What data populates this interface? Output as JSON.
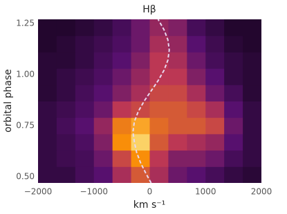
{
  "chart_data": {
    "type": "heatmap",
    "title": "Hβ",
    "xlabel": "km s⁻¹",
    "ylabel": "orbital phase",
    "colormap": "inferno",
    "x_edges": [
      -2000,
      -1667,
      -1333,
      -1000,
      -667,
      -333,
      0,
      333,
      667,
      1000,
      1333,
      1667,
      2000
    ],
    "y_edges": [
      0.47,
      0.55,
      0.63,
      0.71,
      0.79,
      0.87,
      0.95,
      1.03,
      1.11,
      1.19,
      1.27
    ],
    "z": [
      [
        0.15,
        0.15,
        0.2,
        0.25,
        0.45,
        0.6,
        0.45,
        0.3,
        0.25,
        0.2,
        0.15,
        0.12
      ],
      [
        0.15,
        0.18,
        0.2,
        0.3,
        0.55,
        0.75,
        0.5,
        0.35,
        0.35,
        0.3,
        0.2,
        0.15
      ],
      [
        0.15,
        0.18,
        0.22,
        0.35,
        0.75,
        0.9,
        0.6,
        0.5,
        0.45,
        0.4,
        0.25,
        0.15
      ],
      [
        0.15,
        0.2,
        0.25,
        0.4,
        0.7,
        0.8,
        0.65,
        0.6,
        0.6,
        0.55,
        0.3,
        0.15
      ],
      [
        0.15,
        0.18,
        0.22,
        0.3,
        0.5,
        0.55,
        0.6,
        0.6,
        0.55,
        0.45,
        0.25,
        0.15
      ],
      [
        0.12,
        0.15,
        0.2,
        0.25,
        0.35,
        0.45,
        0.55,
        0.55,
        0.45,
        0.3,
        0.2,
        0.12
      ],
      [
        0.12,
        0.15,
        0.18,
        0.22,
        0.3,
        0.4,
        0.5,
        0.5,
        0.35,
        0.25,
        0.15,
        0.12
      ],
      [
        0.12,
        0.12,
        0.15,
        0.2,
        0.25,
        0.35,
        0.5,
        0.45,
        0.3,
        0.2,
        0.15,
        0.12
      ],
      [
        0.1,
        0.12,
        0.15,
        0.18,
        0.22,
        0.3,
        0.45,
        0.4,
        0.25,
        0.18,
        0.12,
        0.1
      ],
      [
        0.1,
        0.1,
        0.12,
        0.15,
        0.2,
        0.3,
        0.4,
        0.35,
        0.2,
        0.15,
        0.1,
        0.1
      ]
    ],
    "curve": {
      "color": "#e8d8f0",
      "x": [
        25,
        -75,
        -166,
        -235,
        -275,
        -300,
        -275,
        -204,
        -100,
        25,
        150,
        254,
        325,
        350,
        325,
        254,
        150
      ],
      "y": [
        0.47,
        0.52,
        0.57,
        0.62,
        0.67,
        0.72,
        0.77,
        0.82,
        0.87,
        0.92,
        0.97,
        1.02,
        1.07,
        1.12,
        1.17,
        1.22,
        1.27
      ]
    },
    "xlim": [
      -2000,
      2000
    ],
    "ylim": [
      0.47,
      1.27
    ],
    "xticks": [
      {
        "value": -2000,
        "label": "−2000"
      },
      {
        "value": -1000,
        "label": "−1000"
      },
      0,
      1000,
      2000
    ],
    "yticks": [
      {
        "value": 0.5,
        "label": "0.50"
      },
      {
        "value": 0.75,
        "label": "0.75"
      },
      {
        "value": 1.0,
        "label": "1.00"
      },
      {
        "value": 1.25,
        "label": "1.25"
      }
    ]
  }
}
